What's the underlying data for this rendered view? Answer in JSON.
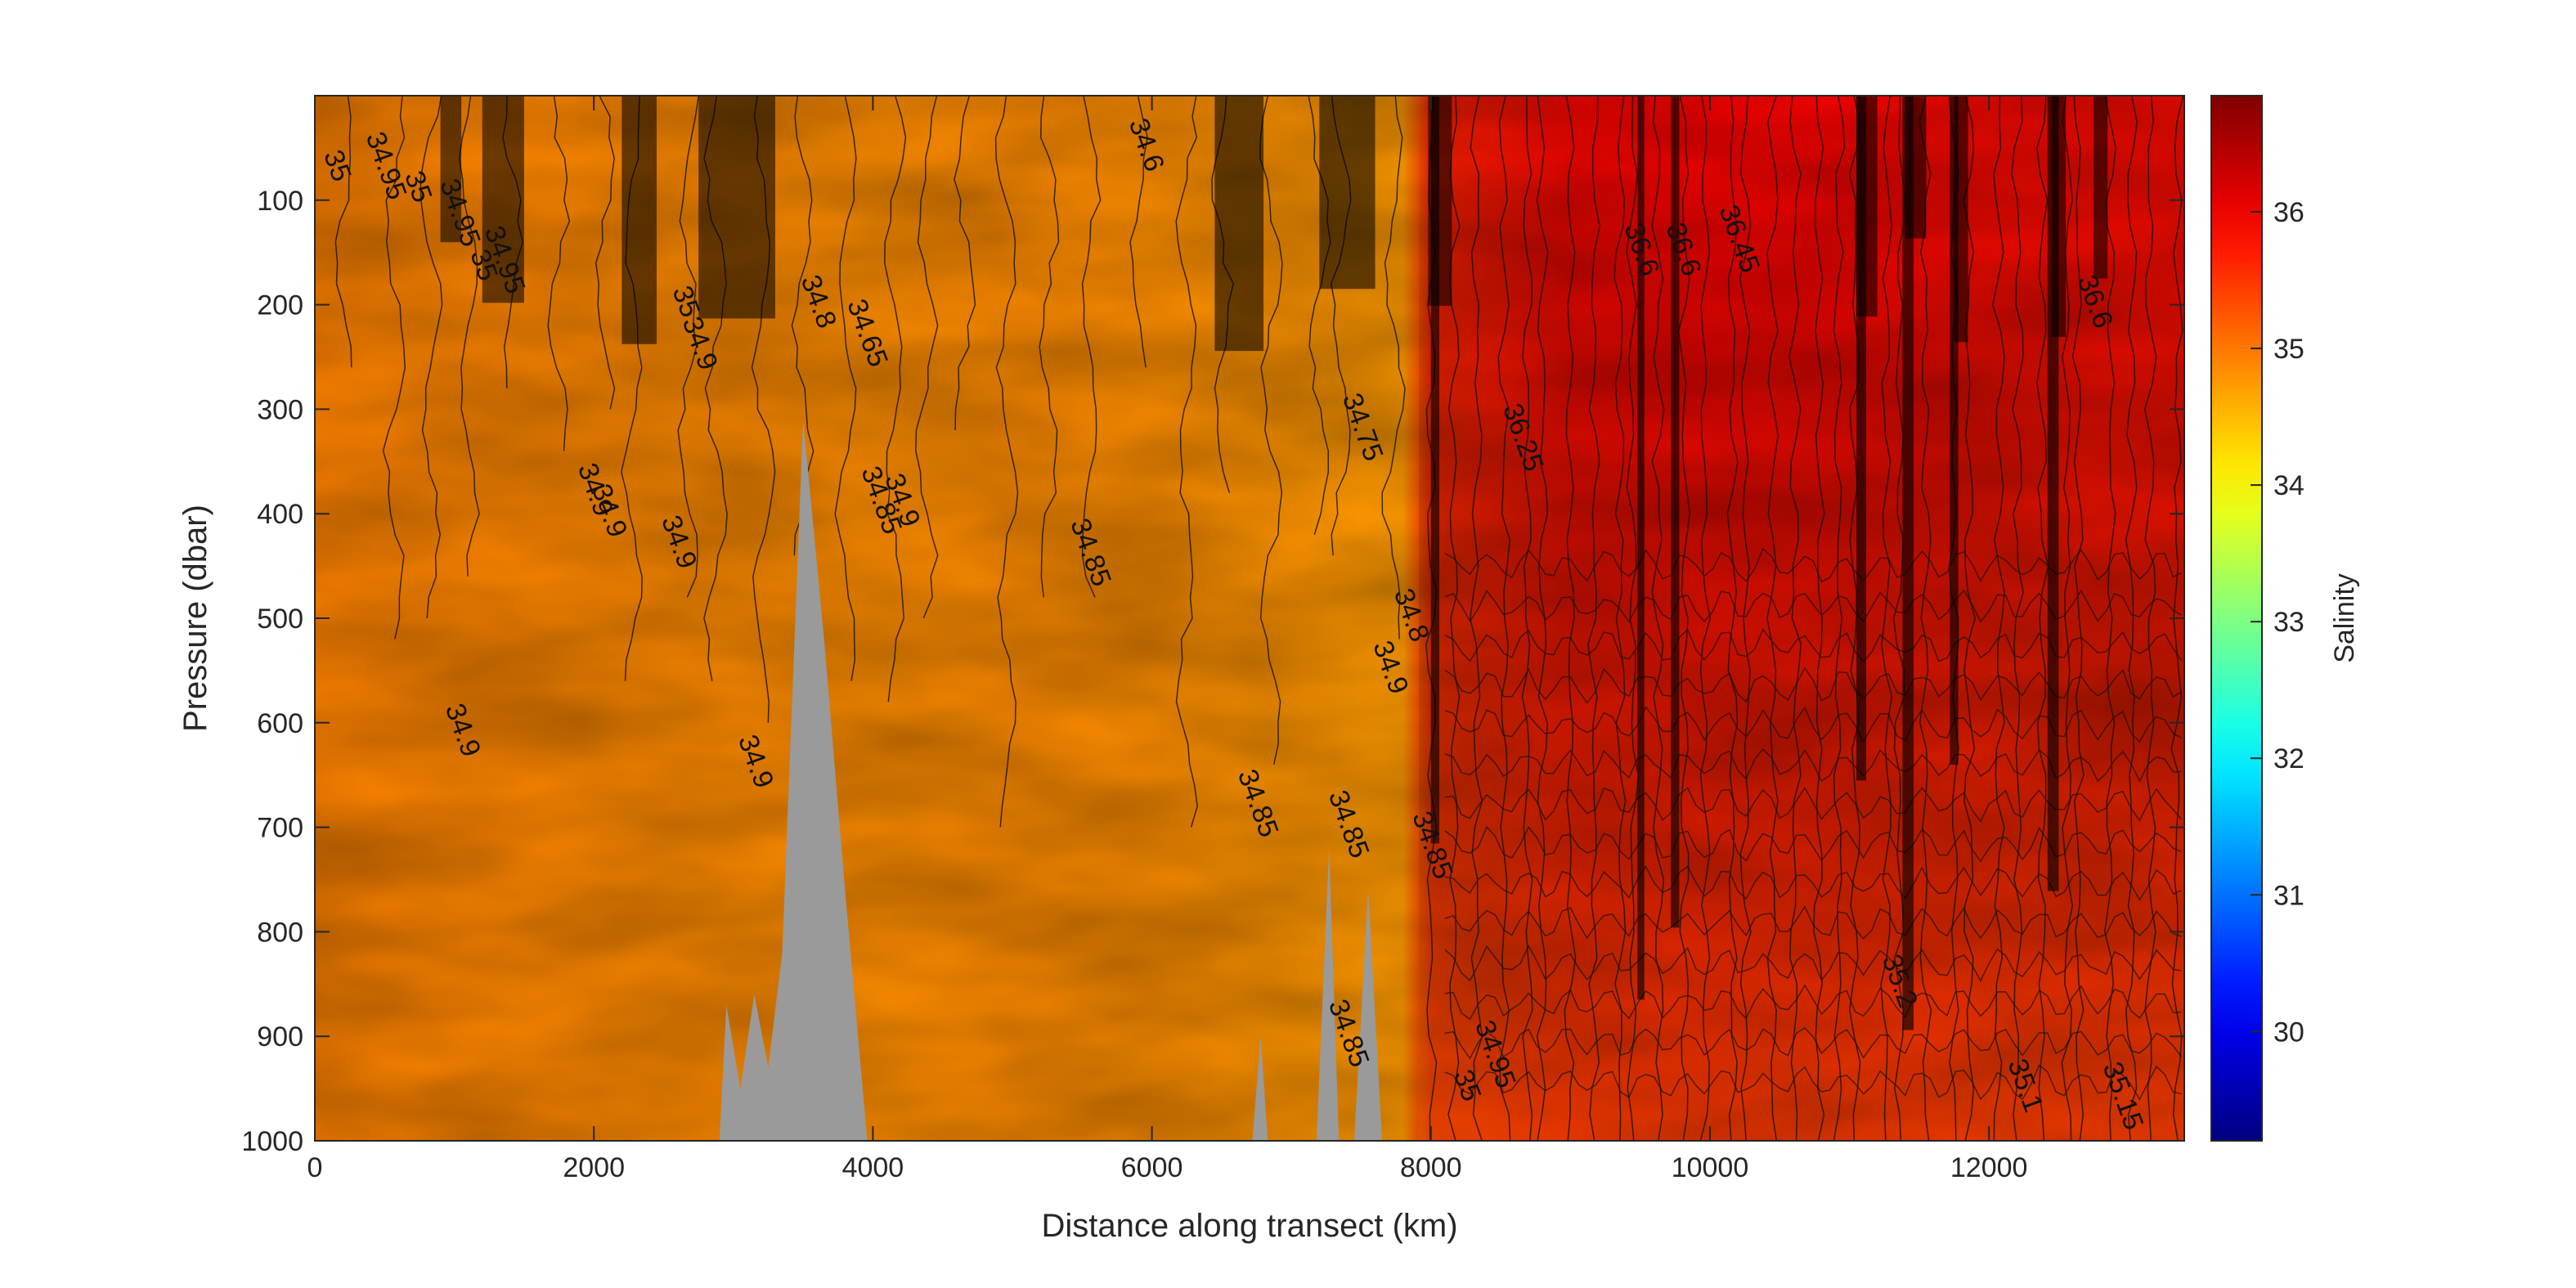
{
  "chart_data": {
    "type": "heatmap",
    "title": "",
    "xlabel": "Distance along transect (km)",
    "ylabel": "Pressure (dbar)",
    "xlim": [
      0,
      13400
    ],
    "ylim": [
      1000,
      0
    ],
    "y_reversed": true,
    "x_ticks": [
      0,
      2000,
      4000,
      6000,
      8000,
      10000,
      12000
    ],
    "y_ticks": [
      100,
      200,
      300,
      400,
      500,
      600,
      700,
      800,
      900,
      1000
    ],
    "colormap": "jet",
    "colorbar": {
      "label": "Salinity",
      "min": 29.2,
      "max": 36.85,
      "ticks": [
        30,
        31,
        32,
        33,
        34,
        35,
        36
      ]
    },
    "grid": false,
    "bathymetry_color": "#9a9a9a",
    "contour_color": "#000000",
    "salinity_profile": {
      "x_km": [
        0,
        800,
        2000,
        3000,
        4000,
        5000,
        6000,
        7000,
        7800,
        8000,
        8500,
        9000,
        10000,
        11000,
        12000,
        13400
      ],
      "surface": [
        34.95,
        34.9,
        34.85,
        34.8,
        34.75,
        34.8,
        34.8,
        34.7,
        34.6,
        36.5,
        36.6,
        36.65,
        36.6,
        36.7,
        36.65,
        36.7
      ],
      "p1000": [
        34.9,
        34.9,
        34.9,
        34.9,
        34.9,
        34.9,
        34.85,
        34.85,
        34.85,
        34.95,
        35.05,
        35.2,
        35.3,
        35.2,
        35.15,
        35.1
      ]
    },
    "bathymetry": [
      {
        "x_km": 2900,
        "pressure": 1000
      },
      {
        "x_km": 2950,
        "pressure": 870
      },
      {
        "x_km": 3050,
        "pressure": 950
      },
      {
        "x_km": 3150,
        "pressure": 860
      },
      {
        "x_km": 3250,
        "pressure": 930
      },
      {
        "x_km": 3350,
        "pressure": 820
      },
      {
        "x_km": 3500,
        "pressure": 310
      },
      {
        "x_km": 3650,
        "pressure": 520
      },
      {
        "x_km": 3800,
        "pressure": 760
      },
      {
        "x_km": 3960,
        "pressure": 1000
      },
      {
        "x_km": 6720,
        "pressure": 1000
      },
      {
        "x_km": 6780,
        "pressure": 900
      },
      {
        "x_km": 6830,
        "pressure": 1000
      },
      {
        "x_km": 7180,
        "pressure": 1000
      },
      {
        "x_km": 7270,
        "pressure": 720
      },
      {
        "x_km": 7340,
        "pressure": 1000
      },
      {
        "x_km": 7450,
        "pressure": 1000
      },
      {
        "x_km": 7550,
        "pressure": 760
      },
      {
        "x_km": 7650,
        "pressure": 1000
      }
    ],
    "contour_labels": [
      {
        "text": "34.95",
        "x": 450,
        "y": 70
      },
      {
        "text": "35",
        "x": 100,
        "y": 70
      },
      {
        "text": "35",
        "x": 680,
        "y": 90
      },
      {
        "text": "34.95",
        "x": 980,
        "y": 115
      },
      {
        "text": "35",
        "x": 1150,
        "y": 165
      },
      {
        "text": "34.95",
        "x": 1300,
        "y": 160
      },
      {
        "text": "35",
        "x": 2600,
        "y": 200
      },
      {
        "text": "34.9",
        "x": 2700,
        "y": 240
      },
      {
        "text": "34.9",
        "x": 1950,
        "y": 380
      },
      {
        "text": "34.9",
        "x": 2050,
        "y": 400
      },
      {
        "text": "34.9",
        "x": 2550,
        "y": 430
      },
      {
        "text": "34.9",
        "x": 1000,
        "y": 610
      },
      {
        "text": "34.9",
        "x": 3100,
        "y": 640
      },
      {
        "text": "34.8",
        "x": 3550,
        "y": 200
      },
      {
        "text": "34.65",
        "x": 3900,
        "y": 230
      },
      {
        "text": "34.85",
        "x": 4000,
        "y": 390
      },
      {
        "text": "34.9",
        "x": 4150,
        "y": 390
      },
      {
        "text": "34.85",
        "x": 5500,
        "y": 440
      },
      {
        "text": "34.6",
        "x": 5900,
        "y": 50
      },
      {
        "text": "34.85",
        "x": 6700,
        "y": 680
      },
      {
        "text": "34.85",
        "x": 7350,
        "y": 700
      },
      {
        "text": "34.85",
        "x": 7350,
        "y": 900
      },
      {
        "text": "34.75",
        "x": 7450,
        "y": 320
      },
      {
        "text": "34.8",
        "x": 7800,
        "y": 500
      },
      {
        "text": "34.9",
        "x": 7650,
        "y": 550
      },
      {
        "text": "34.85",
        "x": 7950,
        "y": 720
      },
      {
        "text": "36.25",
        "x": 8600,
        "y": 330
      },
      {
        "text": "36.6",
        "x": 9450,
        "y": 150
      },
      {
        "text": "36.6",
        "x": 9750,
        "y": 150
      },
      {
        "text": "36.45",
        "x": 10150,
        "y": 140
      },
      {
        "text": "36.6",
        "x": 12700,
        "y": 200
      },
      {
        "text": "35.2",
        "x": 11300,
        "y": 850
      },
      {
        "text": "35.1",
        "x": 12200,
        "y": 950
      },
      {
        "text": "35.15",
        "x": 12900,
        "y": 960
      },
      {
        "text": "34.95",
        "x": 8400,
        "y": 920
      },
      {
        "text": "35",
        "x": 8200,
        "y": 950
      }
    ]
  }
}
